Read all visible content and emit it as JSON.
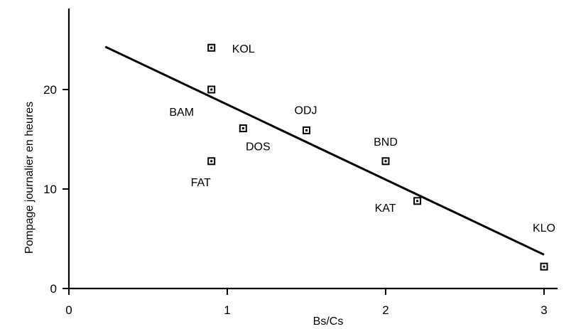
{
  "chart_data": {
    "type": "scatter",
    "title": "",
    "xlabel": "Bs/Cs",
    "ylabel": "Pompage journalier en heures",
    "xlim": [
      0,
      3.3
    ],
    "ylim": [
      0,
      28
    ],
    "xticks": [
      "0",
      "1",
      "2",
      "3"
    ],
    "yticks": [
      "0",
      "10",
      "20"
    ],
    "grid": false,
    "points": [
      {
        "label": "KOL",
        "x": 0.9,
        "y": 24.2
      },
      {
        "label": "BAM",
        "x": 0.9,
        "y": 20.0
      },
      {
        "label": "DOS",
        "x": 1.1,
        "y": 16.1
      },
      {
        "label": "FAT",
        "x": 0.9,
        "y": 12.8
      },
      {
        "label": "ODJ",
        "x": 1.5,
        "y": 15.9
      },
      {
        "label": "BND",
        "x": 2.0,
        "y": 12.8
      },
      {
        "label": "KAT",
        "x": 2.2,
        "y": 8.8
      },
      {
        "label": "KLO",
        "x": 3.0,
        "y": 2.2
      }
    ],
    "trendline": {
      "x": [
        0.23,
        3.0
      ],
      "y": [
        24.3,
        3.4
      ]
    }
  }
}
